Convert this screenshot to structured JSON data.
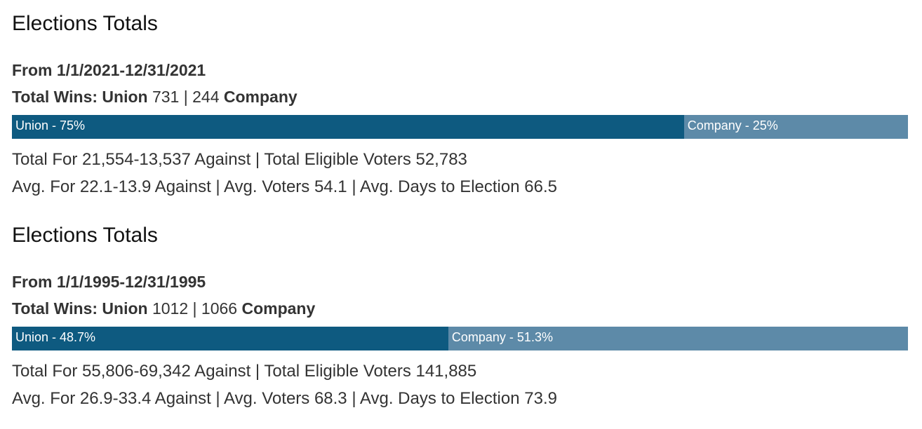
{
  "sections": [
    {
      "title": "Elections Totals",
      "range": "From 1/1/2021-12/31/2021",
      "wins": {
        "label": "Total Wins:",
        "union_label": "Union",
        "union_count": "731",
        "separator": "|",
        "company_count": "244",
        "company_label": "Company"
      },
      "bar": {
        "union_text": "Union - 75%",
        "company_text": "Company - 25%",
        "union_fraction": 0.75,
        "union_color": "#0e5a80",
        "company_color": "#5d8aa8"
      },
      "totals_line": "Total For 21,554-13,537 Against | Total Eligible Voters 52,783",
      "averages_line": "Avg. For 22.1-13.9 Against | Avg. Voters 54.1 | Avg. Days to Election 66.5"
    },
    {
      "title": "Elections Totals",
      "range": "From 1/1/1995-12/31/1995",
      "wins": {
        "label": "Total Wins:",
        "union_label": "Union",
        "union_count": "1012",
        "separator": "|",
        "company_count": "1066",
        "company_label": "Company"
      },
      "bar": {
        "union_text": "Union - 48.7%",
        "company_text": "Company - 51.3%",
        "union_fraction": 0.487,
        "union_color": "#0e5a80",
        "company_color": "#5d8aa8"
      },
      "totals_line": "Total For 55,806-69,342 Against | Total Eligible Voters 141,885",
      "averages_line": "Avg. For 26.9-33.4 Against | Avg. Voters 68.3 | Avg. Days to Election 73.9"
    }
  ]
}
